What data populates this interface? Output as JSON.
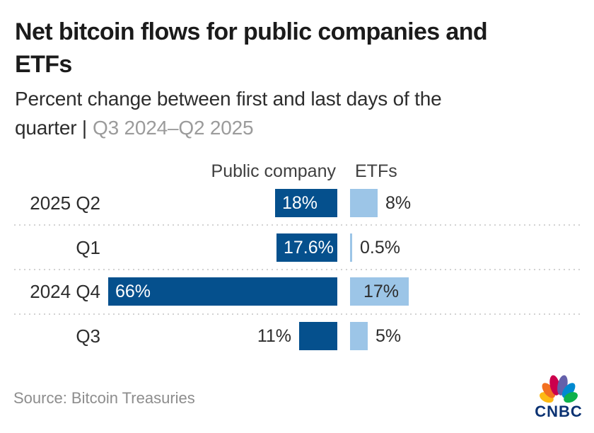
{
  "header": {
    "title_line1": "Net bitcoin flows for public companies and",
    "title_line2": "ETFs",
    "subtitle_line1": "Percent change between first and last days of the",
    "subtitle_line2_dark": "quarter |",
    "subtitle_line2_range": "Q3 2024–Q2 2025"
  },
  "columns": {
    "public_company": "Public company",
    "etfs": "ETFs"
  },
  "chart_data": {
    "type": "bar",
    "orientation": "horizontal",
    "title": "Net bitcoin flows for public companies and ETFs",
    "subtitle": "Percent change between first and last days of the quarter | Q3 2024–Q2 2025",
    "unit": "percent",
    "categories": [
      "2025 Q2",
      "Q1",
      "2024 Q4",
      "Q3"
    ],
    "series": [
      {
        "name": "Public company",
        "color": "#05508d",
        "values": [
          18,
          17.6,
          66,
          11
        ],
        "labels": [
          "18%",
          "17.6%",
          "66%",
          "11%"
        ],
        "label_placement": [
          "inside",
          "inside",
          "inside",
          "outside"
        ]
      },
      {
        "name": "ETFs",
        "color": "#9cc5e7",
        "values": [
          8,
          0.5,
          17,
          5
        ],
        "labels": [
          "8%",
          "0.5%",
          "17%",
          "5%"
        ],
        "label_placement": [
          "outside",
          "outside",
          "inside",
          "outside"
        ]
      }
    ],
    "xlim": [
      0,
      66
    ],
    "grid": false,
    "legend_position": "column-headers"
  },
  "footer": {
    "source": "Source: Bitcoin Treasuries",
    "logo_text": "CNBC",
    "logo_colors": {
      "feathers": [
        "#fdb913",
        "#f37021",
        "#cc004c",
        "#6460aa",
        "#0089d0",
        "#0db14b"
      ],
      "wordmark": "#0b3272"
    }
  }
}
